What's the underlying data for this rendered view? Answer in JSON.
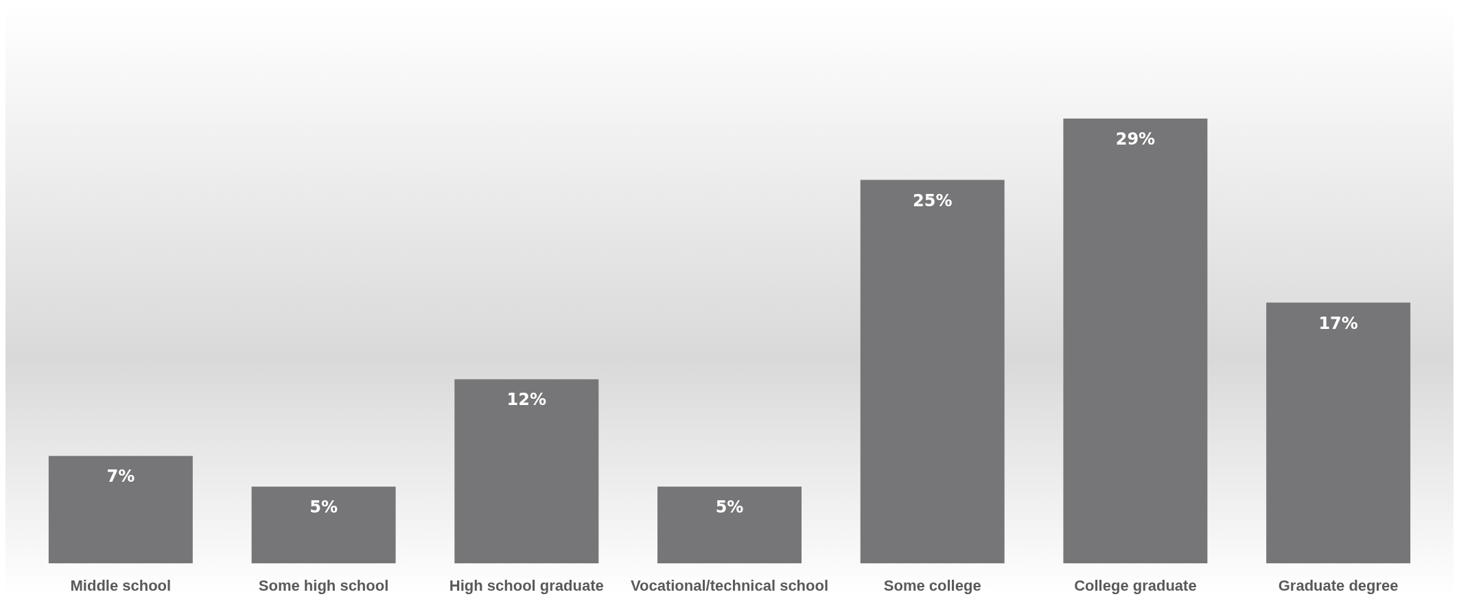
{
  "chart_data": {
    "type": "bar",
    "categories": [
      "Middle school",
      "Some high school",
      "High school graduate",
      "Vocational/technical school",
      "Some college",
      "College graduate",
      "Graduate degree"
    ],
    "values": [
      7,
      5,
      12,
      5,
      25,
      29,
      17
    ],
    "color": "#767678",
    "data_labels": true,
    "value_labels": [
      "7%",
      "5%",
      "12%",
      "5%",
      "25%",
      "29%",
      "17%"
    ],
    "grid": false
  }
}
